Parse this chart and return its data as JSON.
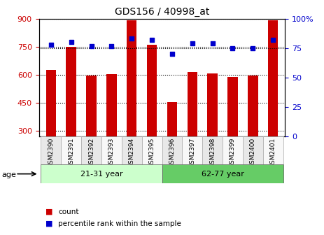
{
  "title": "GDS156 / 40998_at",
  "samples": [
    "GSM2390",
    "GSM2391",
    "GSM2392",
    "GSM2393",
    "GSM2394",
    "GSM2395",
    "GSM2396",
    "GSM2397",
    "GSM2398",
    "GSM2399",
    "GSM2400",
    "GSM2401"
  ],
  "counts": [
    625,
    750,
    597,
    603,
    893,
    762,
    452,
    613,
    607,
    590,
    597,
    893
  ],
  "percentiles": [
    78,
    80,
    77,
    77,
    83,
    82,
    70,
    79,
    79,
    75,
    75,
    82
  ],
  "ylim_left": [
    270,
    900
  ],
  "ylim_right": [
    0,
    100
  ],
  "yticks_left": [
    300,
    450,
    600,
    750,
    900
  ],
  "yticks_right": [
    0,
    25,
    50,
    75,
    100
  ],
  "bar_color": "#cc0000",
  "dot_color": "#0000cc",
  "groups": [
    {
      "label": "21-31 year",
      "start": 0,
      "end": 6,
      "color": "#ccffcc"
    },
    {
      "label": "62-77 year",
      "start": 6,
      "end": 12,
      "color": "#66cc66"
    }
  ],
  "age_label": "age",
  "legend_count": "count",
  "legend_percentile": "percentile rank within the sample",
  "xlabel_color": "#cc0000",
  "ylabel_right_color": "#0000cc",
  "background_color": "#ffffff",
  "grid_color": "#000000",
  "yline_value": 750
}
